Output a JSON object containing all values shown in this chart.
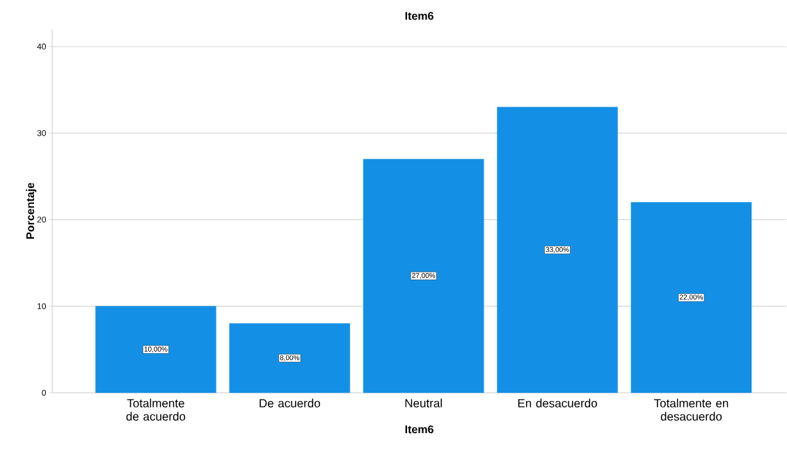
{
  "chart_data": {
    "type": "bar",
    "title": "Item6",
    "xlabel": "Item6",
    "ylabel": "Porcentaje",
    "categories": [
      "Totalmente de acuerdo",
      "De acuerdo",
      "Neutral",
      "En desacuerdo",
      "Totalmente en desacuerdo"
    ],
    "values": [
      10,
      8,
      27,
      33,
      22
    ],
    "value_labels": [
      "10,00%",
      "8,00%",
      "27,00%",
      "33,00%",
      "22,00%"
    ],
    "color": "#1390e6",
    "ylim": [
      0,
      42
    ],
    "yticks": [
      0,
      10,
      20,
      30,
      40
    ],
    "grid": "y"
  }
}
